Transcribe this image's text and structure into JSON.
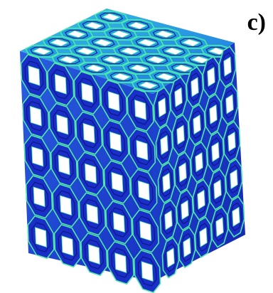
{
  "figure": {
    "panel_label": "c)",
    "subject": "lattice-cube",
    "cells_per_edge": 5,
    "colors": {
      "background": "#ffffff",
      "hole": "#ffffff",
      "stress_low": "#1a2ec8",
      "stress_mid": "#1fa0e6",
      "stress_high": "#4fe8a6",
      "edge_dark": "#0b147a"
    }
  }
}
